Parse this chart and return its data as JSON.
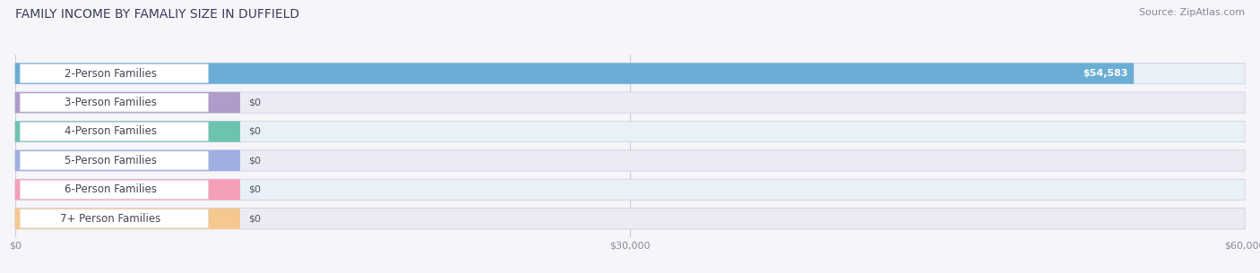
{
  "title": "FAMILY INCOME BY FAMALIY SIZE IN DUFFIELD",
  "source": "Source: ZipAtlas.com",
  "categories": [
    "2-Person Families",
    "3-Person Families",
    "4-Person Families",
    "5-Person Families",
    "6-Person Families",
    "7+ Person Families"
  ],
  "values": [
    54583,
    0,
    0,
    0,
    0,
    0
  ],
  "bar_colors": [
    "#6aaed6",
    "#b09cc8",
    "#6cc4b0",
    "#a0aee0",
    "#f5a0b8",
    "#f5c890"
  ],
  "label_bg_colors": [
    "#ffffff",
    "#ffffff",
    "#ffffff",
    "#ffffff",
    "#ffffff",
    "#ffffff"
  ],
  "pill_bg_colors": [
    "#e8f0f8",
    "#ebebf5",
    "#e8f0f8",
    "#ebebf5",
    "#e8f0f8",
    "#ebebf5"
  ],
  "value_labels": [
    "$54,583",
    "$0",
    "$0",
    "$0",
    "$0",
    "$0"
  ],
  "xlim": [
    0,
    60000
  ],
  "xticks": [
    0,
    30000,
    60000
  ],
  "xtick_labels": [
    "$0",
    "$30,000",
    "$60,000"
  ],
  "bg_color": "#f5f5fa",
  "title_fontsize": 10,
  "source_fontsize": 8,
  "label_fontsize": 8.5,
  "value_fontsize": 8
}
